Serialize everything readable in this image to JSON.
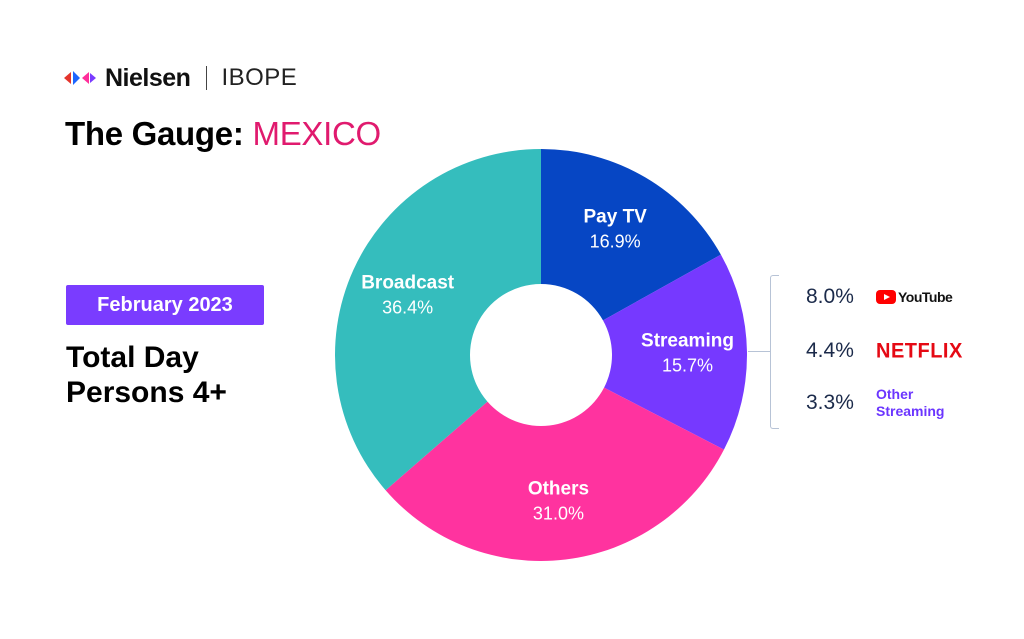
{
  "brand": {
    "name": "Nielsen",
    "partner": "IBOPE"
  },
  "title": {
    "main": "The Gauge:",
    "accent": "MEXICO",
    "accent_color": "#e01a6e"
  },
  "period": "February 2023",
  "audience": [
    "Total Day",
    "Persons 4+"
  ],
  "chart_data": {
    "type": "pie",
    "donut": true,
    "categories": [
      "Pay TV",
      "Streaming",
      "Others",
      "Broadcast"
    ],
    "values": [
      16.9,
      15.7,
      31.0,
      36.4
    ],
    "labels": [
      "16.9%",
      "15.7%",
      "31.0%",
      "36.4%"
    ],
    "colors": [
      "#0646c4",
      "#7639ff",
      "#ff339f",
      "#35bdbd"
    ],
    "start_angle_deg": 0,
    "direction": "clockwise",
    "breakdown": {
      "parent": "Streaming",
      "items": [
        {
          "name": "YouTube",
          "value": 8.0,
          "label": "8.0%",
          "icon": "youtube-logo"
        },
        {
          "name": "NETFLIX",
          "value": 4.4,
          "label": "4.4%",
          "icon": "netflix-logo"
        },
        {
          "name": "Other Streaming",
          "value": 3.3,
          "label": "3.3%",
          "icon": "none"
        }
      ]
    }
  }
}
